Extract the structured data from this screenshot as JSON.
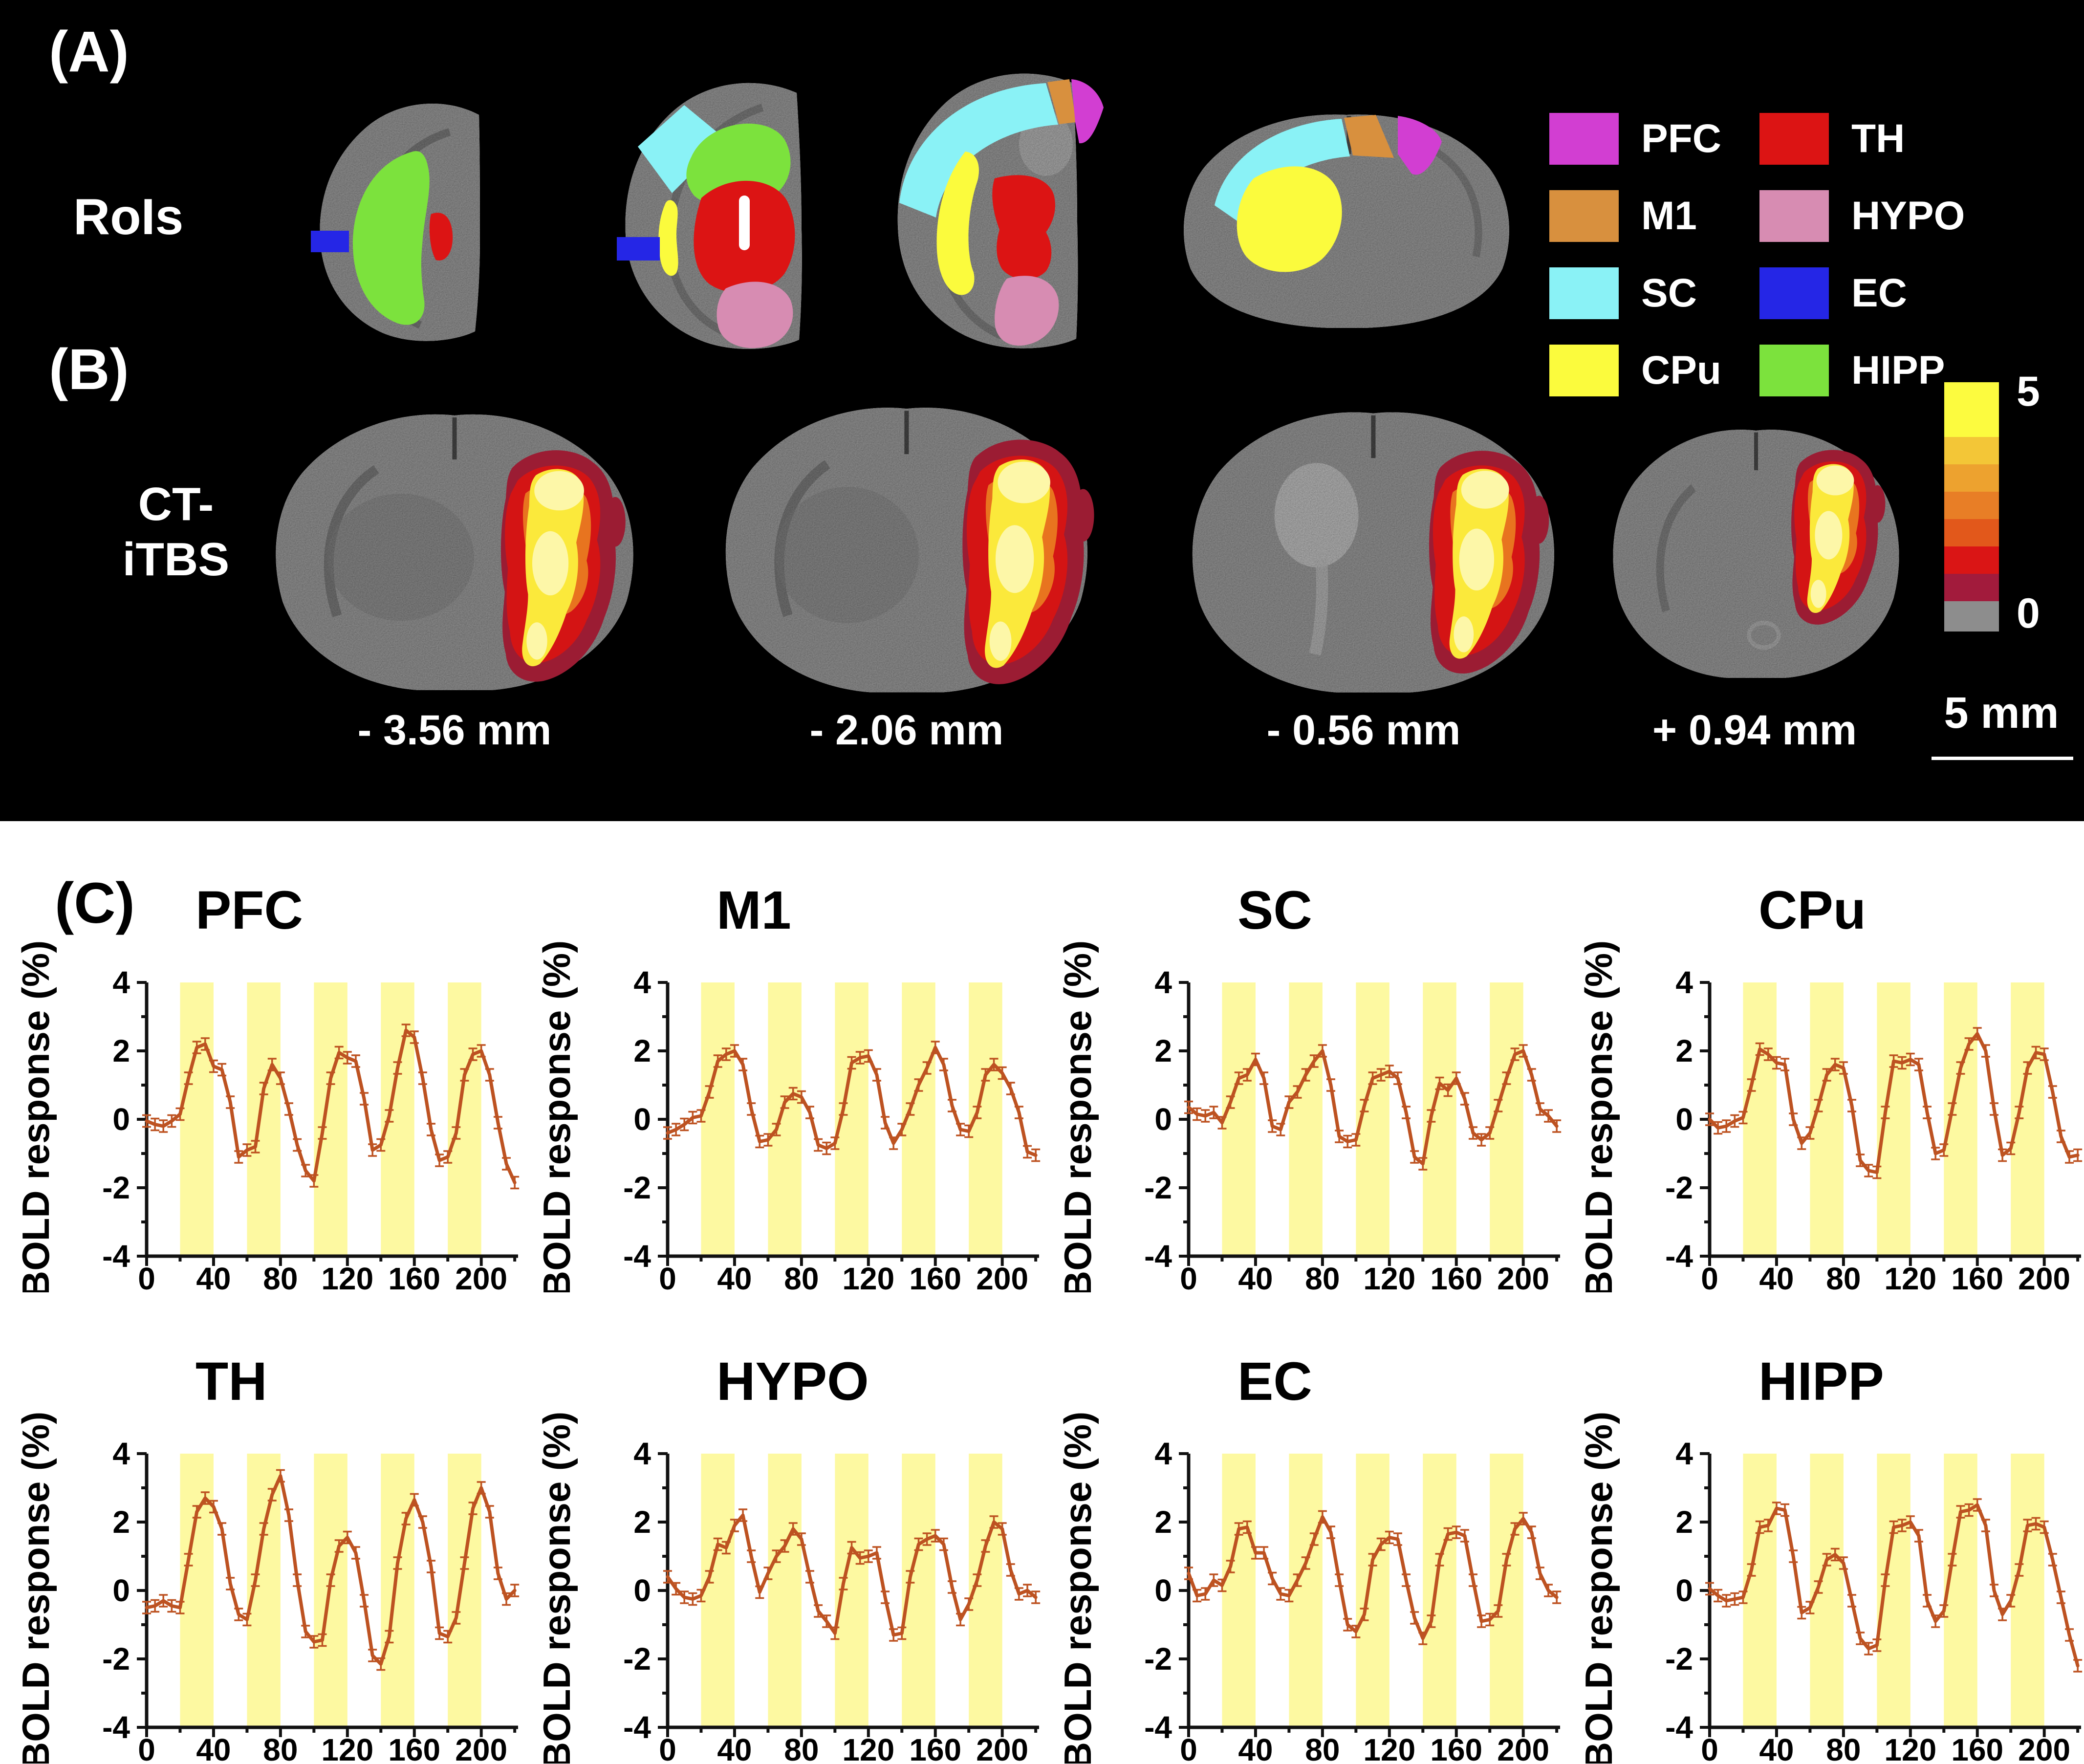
{
  "colors": {
    "background_top": "#000000",
    "background_bottom": "#ffffff",
    "line": "#bd5221",
    "stim_band": "#fdf9a1",
    "brain_gray": "#9c9c9c",
    "heat": {
      "outer": "#9b1c33",
      "mid": "#d41414",
      "warm": "#e8741f",
      "hot": "#fbe93b",
      "core": "#fdf7a8"
    }
  },
  "panel_a": {
    "label": "(A)",
    "row_label": "RoIs",
    "legend": {
      "columns": [
        [
          {
            "label": "PFC",
            "color": "#d23ed2"
          },
          {
            "label": "M1",
            "color": "#d8903e"
          },
          {
            "label": "SC",
            "color": "#8af2f6"
          },
          {
            "label": "CPu",
            "color": "#fbfb3d"
          }
        ],
        [
          {
            "label": "TH",
            "color": "#dc1414"
          },
          {
            "label": "HYPO",
            "color": "#d78cb2"
          },
          {
            "label": "EC",
            "color": "#2526e6"
          },
          {
            "label": "HIPP",
            "color": "#7ce23d"
          }
        ]
      ]
    }
  },
  "panel_b": {
    "label": "(B)",
    "row_label_line1": "CT-",
    "row_label_line2": "iTBS",
    "slice_labels": [
      "- 3.56 mm",
      "- 2.06 mm",
      "- 0.56 mm",
      "+ 0.94 mm"
    ],
    "colorbar": {
      "max": "5",
      "min": "0",
      "segments": [
        "#fcfb3f",
        "#f3c637",
        "#eda22f",
        "#e87e26",
        "#e2581b",
        "#da1515",
        "#a21b3c",
        "#8d8d8d"
      ],
      "segment_heights": [
        112,
        56,
        56,
        56,
        56,
        56,
        56,
        62
      ]
    },
    "scale_bar": {
      "label": "5 mm"
    }
  },
  "panel_c": {
    "label": "(C)"
  },
  "chart_data": {
    "type": "line",
    "layout": "2x4 subplots",
    "ylabel": "BOLD response (%)",
    "xlabel": "",
    "xlim": [
      0,
      222
    ],
    "ylim": [
      -4,
      4
    ],
    "xticks": [
      0,
      40,
      80,
      120,
      160,
      200
    ],
    "yticks": [
      -4,
      -2,
      0,
      2,
      4
    ],
    "stim_blocks": [
      [
        20,
        40
      ],
      [
        60,
        80
      ],
      [
        100,
        120
      ],
      [
        140,
        160
      ],
      [
        180,
        200
      ]
    ],
    "grid": false,
    "legend": "none",
    "error_bar_halfwidth": 0.15,
    "x": [
      0,
      5,
      10,
      15,
      20,
      25,
      30,
      35,
      40,
      45,
      50,
      55,
      60,
      65,
      70,
      75,
      80,
      85,
      90,
      95,
      100,
      105,
      110,
      115,
      120,
      125,
      130,
      135,
      140,
      145,
      150,
      155,
      160,
      165,
      170,
      175,
      180,
      185,
      190,
      195,
      200,
      205,
      210,
      215,
      220
    ],
    "series": [
      {
        "name": "PFC",
        "values": [
          -0.05,
          -0.15,
          -0.2,
          -0.05,
          0.15,
          1.2,
          2.1,
          2.2,
          1.55,
          1.45,
          0.5,
          -1.1,
          -0.9,
          -0.8,
          0.9,
          1.6,
          1.2,
          0.3,
          -0.75,
          -1.5,
          -1.8,
          -0.4,
          1.2,
          1.95,
          1.8,
          1.7,
          0.6,
          -0.9,
          -0.75,
          0.1,
          1.5,
          2.6,
          2.4,
          1.2,
          -0.3,
          -1.2,
          -1.1,
          -0.4,
          1.3,
          1.9,
          2.0,
          1.3,
          -0.1,
          -1.3,
          -1.85
        ]
      },
      {
        "name": "M1",
        "values": [
          -0.4,
          -0.3,
          -0.15,
          0.05,
          0.1,
          0.8,
          1.7,
          1.9,
          2.0,
          1.6,
          0.3,
          -0.65,
          -0.6,
          -0.3,
          0.5,
          0.75,
          0.65,
          0.2,
          -0.75,
          -0.85,
          -0.7,
          0.3,
          1.65,
          1.8,
          1.85,
          1.3,
          -0.1,
          -0.7,
          -0.3,
          0.3,
          1.0,
          1.5,
          2.1,
          1.6,
          0.4,
          -0.3,
          -0.35,
          0.2,
          1.3,
          1.6,
          1.35,
          0.9,
          0.2,
          -0.95,
          -1.05
        ]
      },
      {
        "name": "SC",
        "values": [
          0.35,
          0.15,
          0.1,
          0.2,
          -0.1,
          0.5,
          1.2,
          1.3,
          1.75,
          1.2,
          -0.2,
          -0.3,
          0.5,
          0.8,
          1.3,
          1.7,
          2.0,
          1.0,
          -0.5,
          -0.65,
          -0.6,
          0.4,
          1.2,
          1.3,
          1.4,
          1.2,
          0.2,
          -1.1,
          -1.3,
          0.1,
          1.05,
          0.85,
          1.2,
          0.6,
          -0.4,
          -0.6,
          -0.4,
          0.4,
          1.2,
          1.9,
          2.0,
          1.3,
          0.3,
          0.1,
          -0.2
        ]
      },
      {
        "name": "CPu",
        "values": [
          0.0,
          -0.25,
          -0.2,
          -0.05,
          0.05,
          1.0,
          2.05,
          1.9,
          1.65,
          1.6,
          0.0,
          -0.7,
          -0.4,
          0.4,
          1.3,
          1.6,
          1.5,
          0.4,
          -1.2,
          -1.5,
          -1.55,
          0.2,
          1.7,
          1.65,
          1.75,
          1.6,
          0.2,
          -1.0,
          -0.9,
          0.3,
          1.5,
          2.2,
          2.5,
          2.0,
          0.3,
          -1.05,
          -0.85,
          0.2,
          1.5,
          1.95,
          1.9,
          0.8,
          -0.5,
          -1.1,
          -1.05
        ]
      },
      {
        "name": "TH",
        "values": [
          -0.5,
          -0.45,
          -0.3,
          -0.45,
          -0.5,
          0.9,
          2.3,
          2.7,
          2.45,
          1.8,
          0.2,
          -0.7,
          -0.85,
          0.3,
          1.8,
          2.8,
          3.35,
          2.2,
          0.3,
          -1.2,
          -1.5,
          -1.45,
          0.3,
          1.3,
          1.55,
          1.1,
          -0.3,
          -1.9,
          -2.15,
          -1.35,
          0.8,
          2.1,
          2.65,
          2.0,
          0.7,
          -1.25,
          -1.35,
          -0.8,
          0.8,
          2.4,
          3.0,
          2.3,
          0.5,
          -0.25,
          0.0
        ]
      },
      {
        "name": "HYPO",
        "values": [
          0.4,
          0.05,
          -0.2,
          -0.25,
          -0.15,
          0.4,
          1.35,
          1.25,
          1.9,
          2.2,
          1.0,
          -0.05,
          0.5,
          1.0,
          1.3,
          1.8,
          1.5,
          0.4,
          -0.6,
          -0.9,
          -1.25,
          0.2,
          1.25,
          0.95,
          1.0,
          1.1,
          -0.2,
          -1.3,
          -1.25,
          0.4,
          1.35,
          1.5,
          1.6,
          1.35,
          0.1,
          -0.85,
          -0.4,
          0.3,
          1.3,
          2.0,
          1.8,
          0.6,
          -0.1,
          0.0,
          -0.2
        ]
      },
      {
        "name": "EC",
        "values": [
          0.5,
          -0.15,
          -0.1,
          0.3,
          0.15,
          0.7,
          1.8,
          1.85,
          1.1,
          1.1,
          0.35,
          -0.1,
          -0.15,
          0.3,
          0.8,
          1.5,
          2.15,
          1.7,
          0.3,
          -1.0,
          -1.2,
          -0.7,
          0.9,
          1.35,
          1.55,
          1.5,
          0.3,
          -0.8,
          -1.4,
          -0.9,
          0.9,
          1.65,
          1.7,
          1.6,
          0.3,
          -0.9,
          -0.85,
          -0.6,
          0.9,
          1.8,
          2.1,
          1.7,
          0.5,
          0.0,
          -0.2
        ]
      },
      {
        "name": "HIPP",
        "values": [
          0.05,
          -0.15,
          -0.3,
          -0.25,
          -0.2,
          0.6,
          1.85,
          1.9,
          2.4,
          2.35,
          1.0,
          -0.65,
          -0.5,
          0.1,
          0.9,
          1.05,
          0.8,
          -0.3,
          -1.4,
          -1.7,
          -1.6,
          0.3,
          1.85,
          1.9,
          2.0,
          1.6,
          -0.3,
          -0.9,
          -0.6,
          0.9,
          2.3,
          2.35,
          2.5,
          1.9,
          0.0,
          -0.7,
          -0.3,
          0.6,
          1.9,
          1.95,
          1.85,
          0.9,
          -0.2,
          -1.3,
          -2.2
        ]
      }
    ]
  }
}
